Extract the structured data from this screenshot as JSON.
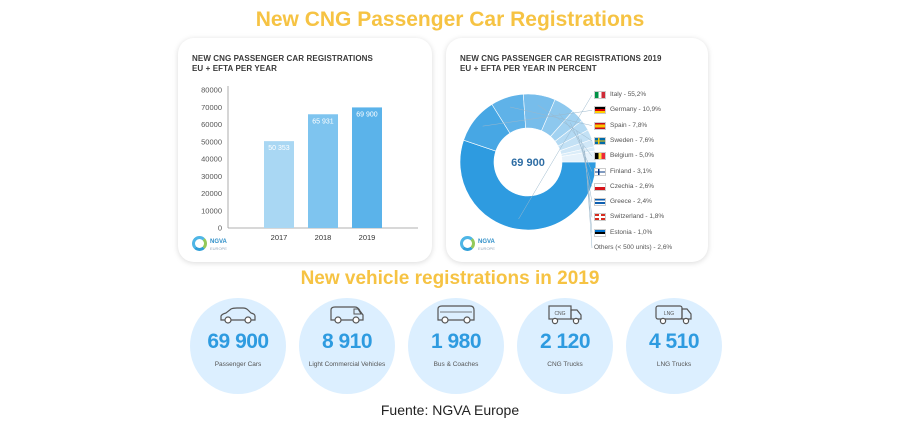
{
  "header": {
    "title": "New CNG Passenger Car Registrations",
    "subtitle": "New vehicle registrations in 2019"
  },
  "chart_data": [
    {
      "type": "bar",
      "title": "NEW CNG PASSENGER CAR REGISTRATIONS",
      "subtitle": "EU + EFTA PER YEAR",
      "categories": [
        "2017",
        "2018",
        "2019"
      ],
      "values": [
        50353,
        65931,
        69900
      ],
      "value_labels": [
        "50 353",
        "65 931",
        "69 900"
      ],
      "y_ticks": [
        0,
        10000,
        20000,
        30000,
        40000,
        50000,
        60000,
        70000,
        80000
      ],
      "ylim": [
        0,
        80000
      ],
      "grid": false,
      "bar_colors": [
        "#a9d7f3",
        "#7ec4ef",
        "#5bb3ea"
      ]
    },
    {
      "type": "pie",
      "donut": true,
      "title": "NEW CNG PASSENGER CAR REGISTRATIONS 2019",
      "subtitle": "EU + EFTA PER YEAR IN PERCENT",
      "center_label": "69 900",
      "legend_position": "right",
      "slices": [
        {
          "label": "Italy - 55,2%",
          "value": 55.2,
          "color": "#2e9be0",
          "flag": "italy"
        },
        {
          "label": "Germany - 10,9%",
          "value": 10.9,
          "color": "#47a7e4",
          "flag": "germany"
        },
        {
          "label": "Spain - 7,8%",
          "value": 7.8,
          "color": "#5fb2e8",
          "flag": "spain"
        },
        {
          "label": "Sweden - 7,6%",
          "value": 7.6,
          "color": "#77bdeb",
          "flag": "sweden"
        },
        {
          "label": "Belgium - 5,0%",
          "value": 5.0,
          "color": "#8dc8ee",
          "flag": "belgium"
        },
        {
          "label": "Finland - 3,1%",
          "value": 3.1,
          "color": "#a2d2f1",
          "flag": "finland"
        },
        {
          "label": "Czechia - 2,6%",
          "value": 2.6,
          "color": "#b4daf3",
          "flag": "czechia"
        },
        {
          "label": "Greece - 2,4%",
          "value": 2.4,
          "color": "#c3e1f5",
          "flag": "greece"
        },
        {
          "label": "Switzerland - 1,8%",
          "value": 1.8,
          "color": "#d0e7f7",
          "flag": "switzerland"
        },
        {
          "label": "Estonia - 1,0%",
          "value": 1.0,
          "color": "#dbedf9",
          "flag": "estonia"
        },
        {
          "label": "Others (< 500 units) - 2,6%",
          "value": 2.6,
          "color": "#e6f2fb",
          "flag": "none"
        }
      ]
    }
  ],
  "logo": {
    "text": "NGVA",
    "tagline": "EUROPE"
  },
  "vehicles": [
    {
      "value": "69 900",
      "label": "Passenger Cars",
      "icon": "car-icon"
    },
    {
      "value": "8 910",
      "label": "Light Commercial Vehicles",
      "icon": "van-icon"
    },
    {
      "value": "1 980",
      "label": "Bus & Coaches",
      "icon": "bus-icon"
    },
    {
      "value": "2 120",
      "label": "CNG Trucks",
      "icon": "cng-truck-icon",
      "icon_text": "CNG"
    },
    {
      "value": "4 510",
      "label": "LNG Trucks",
      "icon": "lng-truck-icon",
      "icon_text": "LNG"
    }
  ],
  "footer": {
    "source": "Fuente: NGVA Europe"
  },
  "colors": {
    "accent_yellow": "#f6c343",
    "accent_blue": "#2e9be0",
    "circle_bg": "#dcefff"
  }
}
